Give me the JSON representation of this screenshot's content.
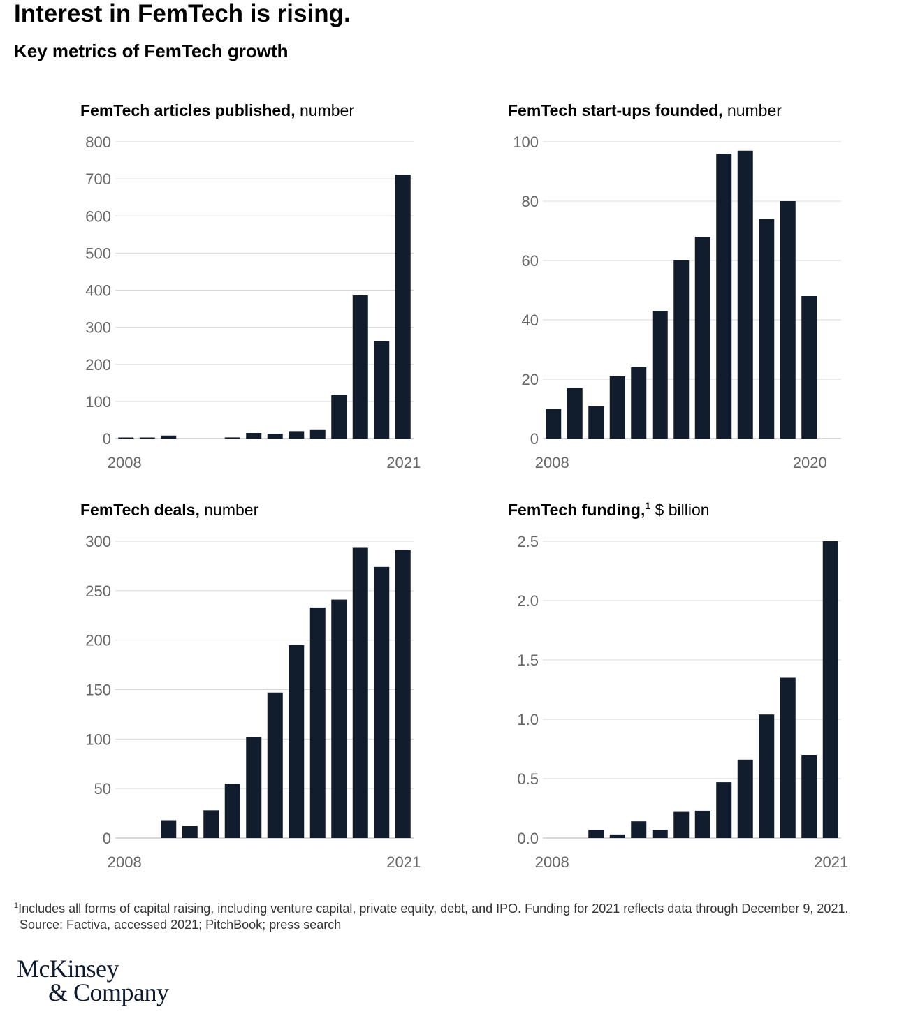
{
  "header": {
    "title": "Interest in FemTech is rising.",
    "subtitle": "Key metrics of FemTech growth"
  },
  "chart_data": [
    {
      "type": "bar",
      "title_bold": "FemTech articles published,",
      "title_rest": " number",
      "footnote_mark": "",
      "categories": [
        "2008",
        "2009",
        "2010",
        "2011",
        "2012",
        "2013",
        "2014",
        "2015",
        "2016",
        "2017",
        "2018",
        "2019",
        "2020",
        "2021"
      ],
      "values": [
        2,
        2,
        8,
        0,
        0,
        3,
        15,
        13,
        20,
        23,
        117,
        386,
        263,
        711
      ],
      "ylim": [
        0,
        800
      ],
      "yticks": [
        0,
        100,
        200,
        300,
        400,
        500,
        600,
        700,
        800
      ],
      "ytick_labels": [
        "0",
        "100",
        "200",
        "300",
        "400",
        "500",
        "600",
        "700",
        "800"
      ],
      "xtick_labels": [
        "2008",
        "2021"
      ]
    },
    {
      "type": "bar",
      "title_bold": "FemTech start-ups founded,",
      "title_rest": " number",
      "footnote_mark": "",
      "categories": [
        "2008",
        "2009",
        "2010",
        "2011",
        "2012",
        "2013",
        "2014",
        "2015",
        "2016",
        "2017",
        "2018",
        "2019",
        "2020"
      ],
      "values": [
        10,
        17,
        11,
        21,
        24,
        43,
        60,
        68,
        96,
        97,
        74,
        80,
        48
      ],
      "ylim": [
        0,
        100
      ],
      "yticks": [
        0,
        20,
        40,
        60,
        80,
        100
      ],
      "ytick_labels": [
        "0",
        "20",
        "40",
        "60",
        "80",
        "100"
      ],
      "xtick_labels": [
        "2008",
        "2020"
      ]
    },
    {
      "type": "bar",
      "title_bold": "FemTech deals,",
      "title_rest": " number",
      "footnote_mark": "",
      "categories": [
        "2008",
        "2009",
        "2010",
        "2011",
        "2012",
        "2013",
        "2014",
        "2015",
        "2016",
        "2017",
        "2018",
        "2019",
        "2020",
        "2021"
      ],
      "values": [
        0,
        0,
        18,
        12,
        28,
        55,
        102,
        147,
        195,
        233,
        241,
        294,
        274,
        291
      ],
      "ylim": [
        0,
        300
      ],
      "yticks": [
        0,
        50,
        100,
        150,
        200,
        250,
        300
      ],
      "ytick_labels": [
        "0",
        "50",
        "100",
        "150",
        "200",
        "250",
        "300"
      ],
      "xtick_labels": [
        "2008",
        "2021"
      ]
    },
    {
      "type": "bar",
      "title_bold": "FemTech funding,",
      "title_rest": " $ billion",
      "footnote_mark": "1",
      "categories": [
        "2008",
        "2009",
        "2010",
        "2011",
        "2012",
        "2013",
        "2014",
        "2015",
        "2016",
        "2017",
        "2018",
        "2019",
        "2020",
        "2021"
      ],
      "values": [
        0,
        0,
        0.07,
        0.03,
        0.14,
        0.07,
        0.22,
        0.23,
        0.47,
        0.66,
        1.04,
        1.35,
        0.7,
        2.5
      ],
      "ylim": [
        0,
        2.5
      ],
      "yticks": [
        0,
        0.5,
        1.0,
        1.5,
        2.0,
        2.5
      ],
      "ytick_labels": [
        "0.0",
        "0.5",
        "1.0",
        "1.5",
        "2.0",
        "2.5"
      ],
      "xtick_labels": [
        "2008",
        "2021"
      ]
    }
  ],
  "footnote": {
    "mark": "1",
    "text": "Includes all forms of capital raising, including venture capital, private equity, debt, and IPO. Funding for 2021 reflects data through December 9, 2021.",
    "source": "Source: Factiva, accessed 2021; PitchBook; press search"
  },
  "logo": {
    "line1": "McKinsey",
    "line2": "& Company"
  }
}
